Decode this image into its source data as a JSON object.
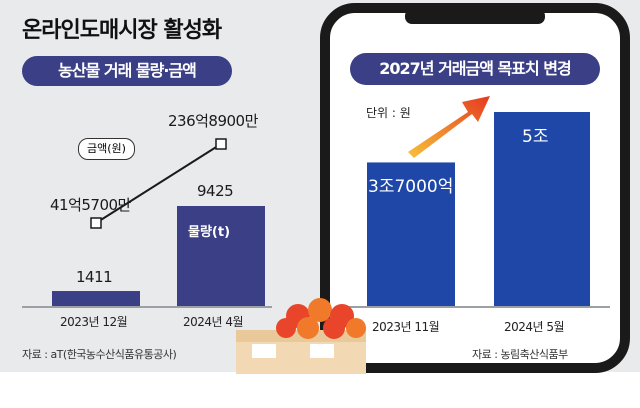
{
  "title": "온라인도매시장 활성화",
  "chart_data": [
    {
      "type": "bar",
      "title": "농산물 거래 물량·금액",
      "categories": [
        "2023년 12월",
        "2024년 4월"
      ],
      "series": [
        {
          "name": "물량(t)",
          "values": [
            1411,
            9425
          ],
          "value_labels": [
            "1411",
            "9425"
          ]
        },
        {
          "name": "금액(원)",
          "type": "line",
          "values": [
            4157000000,
            23689000000
          ],
          "value_labels": [
            "41억5700만",
            "236억8900만"
          ]
        }
      ],
      "source": "자료 : aT(한국농수산식품유통공사)"
    },
    {
      "type": "bar",
      "title": "2027년 거래금액 목표치 변경",
      "unit": "단위 : 원",
      "categories": [
        "2023년 11월",
        "2024년 5월"
      ],
      "values": [
        3700000000000,
        5000000000000
      ],
      "value_labels": [
        "3조7000억",
        "5조"
      ],
      "source": "자료 : 농림축산식품부"
    }
  ],
  "colors": {
    "bar": "#3b3f86",
    "bar_right": "#1f47a8",
    "arrow": "#e53a1f",
    "pill": "#3b3f86"
  }
}
